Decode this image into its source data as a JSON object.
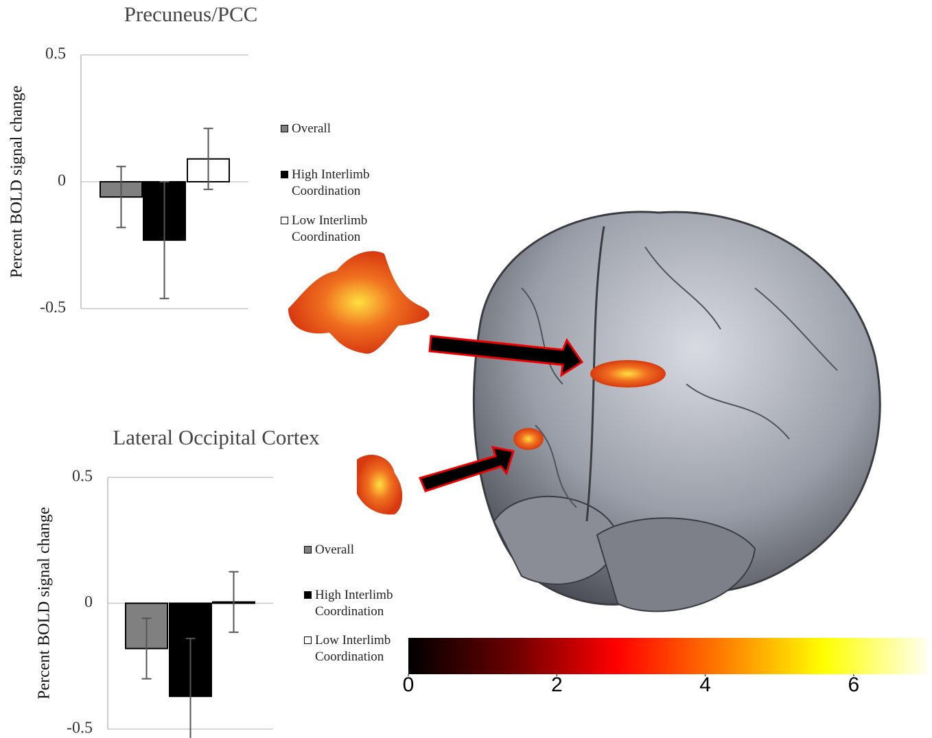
{
  "chart_data": [
    {
      "type": "bar",
      "title": "Precuneus/PCC",
      "y_label": "Percent  BOLD signal change",
      "series": [
        {
          "name": "Overall",
          "color": "#808080",
          "values": [
            -0.06
          ],
          "errors": [
            0.12
          ]
        },
        {
          "name": "High Interlimb Coordination",
          "color": "#000000",
          "values": [
            -0.23
          ],
          "errors": [
            0.23
          ]
        },
        {
          "name": "Low Interlimb Coordination",
          "color": "#ffffff",
          "values": [
            0.09
          ],
          "errors": [
            0.12
          ]
        }
      ],
      "ylim": [
        -0.5,
        0.5
      ],
      "yticks": [
        -0.5,
        0,
        0.5
      ],
      "grid": true
    },
    {
      "type": "bar",
      "title": "Lateral Occipital Cortex",
      "y_label": "Percent  BOLD signal change",
      "series": [
        {
          "name": "Overall",
          "color": "#808080",
          "values": [
            -0.18
          ],
          "errors": [
            0.12
          ]
        },
        {
          "name": "High Interlimb Coordination",
          "color": "#000000",
          "values": [
            -0.37
          ],
          "errors": [
            0.23
          ]
        },
        {
          "name": "Low Interlimb Coordination",
          "color": "#ffffff",
          "values": [
            0.005
          ],
          "errors": [
            0.12
          ]
        }
      ],
      "ylim": [
        -0.5,
        0.5
      ],
      "yticks": [
        -0.5,
        0,
        0.5
      ],
      "grid": true
    },
    {
      "type": "colorbar",
      "xlim": [
        0,
        7
      ],
      "xticks": [
        0,
        2,
        4,
        6
      ],
      "colors": [
        "#000000",
        "#6a0000",
        "#ff0000",
        "#ff7a00",
        "#ffff00",
        "#fffff0"
      ]
    }
  ]
}
